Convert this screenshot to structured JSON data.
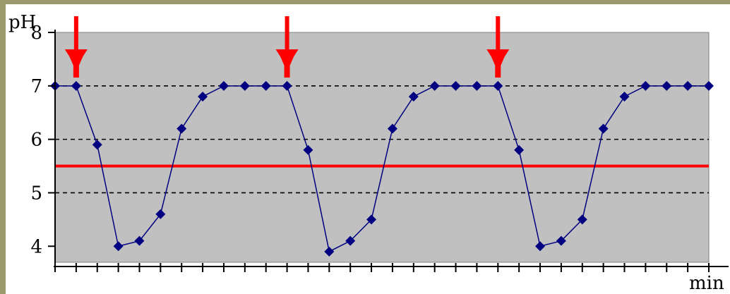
{
  "chart_data": {
    "type": "line",
    "title": "",
    "ylabel": "pH",
    "xlabel": "min",
    "ylim": [
      3.7,
      8.0
    ],
    "yticks": [
      4,
      5,
      6,
      7,
      8
    ],
    "x_tick_count": 31,
    "grid": "dashed horizontal at 5, 6, 7",
    "colors": {
      "plot_background": "#c0c0c0",
      "series_line": "#000080",
      "threshold_line": "#ff0000",
      "arrow": "#ff0000"
    },
    "series": [
      {
        "values": [
          7,
          7,
          5.9,
          4,
          4.1,
          4.6,
          6.2,
          6.8,
          7,
          7,
          7,
          7,
          5.8,
          3.9,
          4.1,
          4.5,
          6.2,
          6.8,
          7,
          7,
          7,
          7,
          5.8,
          4,
          4.1,
          4.5,
          6.2,
          6.8,
          7,
          7,
          7,
          7
        ]
      }
    ],
    "reference_lines": [
      {
        "y": 5.5,
        "style": "solid red"
      }
    ],
    "annotations": [
      {
        "type": "arrow",
        "at_index": 1
      },
      {
        "type": "arrow",
        "at_index": 11
      },
      {
        "type": "arrow",
        "at_index": 21
      }
    ]
  }
}
